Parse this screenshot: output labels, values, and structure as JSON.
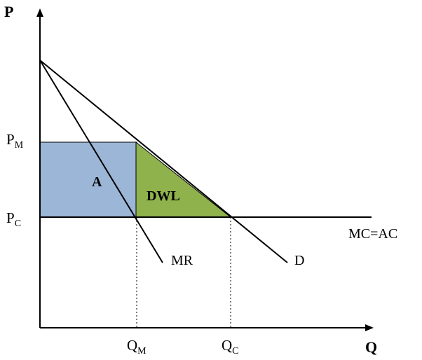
{
  "axes": {
    "y_label": "P",
    "x_label": "Q"
  },
  "price_labels": {
    "pm": {
      "main": "P",
      "sub": "M"
    },
    "pc": {
      "main": "P",
      "sub": "C"
    }
  },
  "quantity_labels": {
    "qm": {
      "main": "Q",
      "sub": "M"
    },
    "qc": {
      "main": "Q",
      "sub": "C"
    }
  },
  "curves": {
    "mc_ac": "MC=AC",
    "demand": "D",
    "marginal_revenue": "MR"
  },
  "areas": {
    "monopoly_profit": "A",
    "deadweight_loss": "DWL"
  },
  "colors": {
    "profit_fill": "#9bb6d6",
    "dwl_fill": "#8fb24c",
    "line": "#000000"
  }
}
